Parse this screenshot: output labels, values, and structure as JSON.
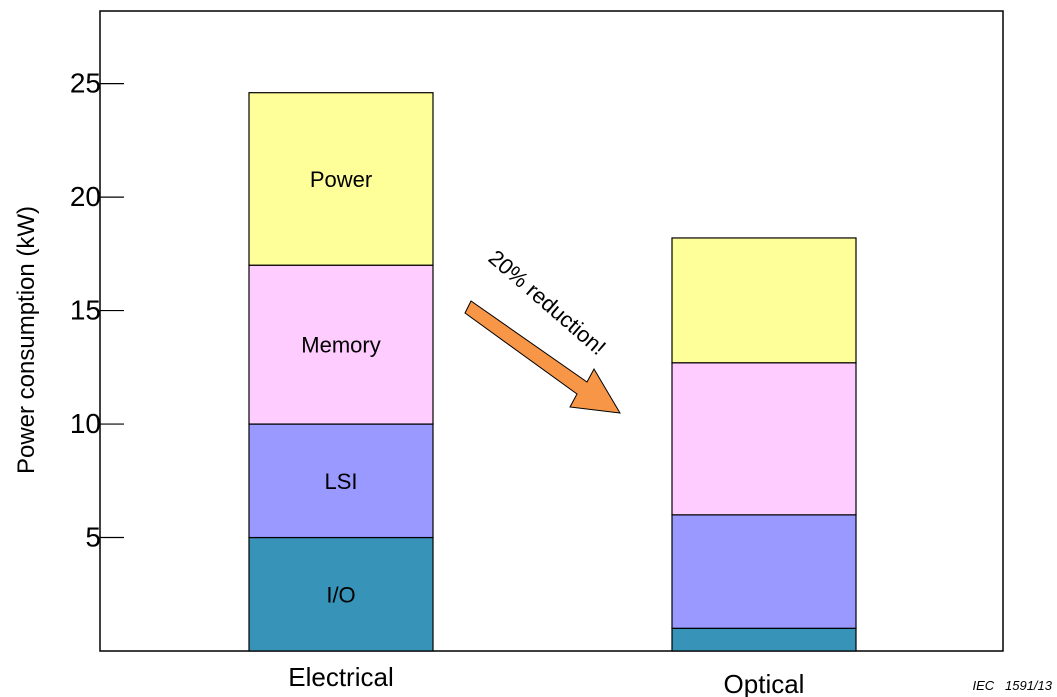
{
  "chart_data": {
    "type": "bar",
    "stacked": true,
    "categories": [
      "Electrical",
      "Optical"
    ],
    "series": [
      {
        "name": "I/O",
        "color": "#3893b8",
        "values": [
          5.0,
          1.0
        ]
      },
      {
        "name": "LSI",
        "color": "#9999ff",
        "values": [
          5.0,
          5.0
        ]
      },
      {
        "name": "Memory",
        "color": "#ffccff",
        "values": [
          7.0,
          6.7
        ]
      },
      {
        "name": "Power",
        "color": "#ffff99",
        "values": [
          7.6,
          5.5
        ]
      }
    ],
    "ylabel": "Power consumption (kW)",
    "xlabel": "",
    "yticks": [
      5,
      10,
      15,
      20,
      25
    ],
    "ylim": [
      0,
      28.2
    ],
    "grid": false,
    "legend": "none",
    "annotation": {
      "text": "20% reduction!",
      "arrow_color": "#f79646"
    }
  },
  "footer": {
    "figure_id": "IEC   1591/13"
  }
}
